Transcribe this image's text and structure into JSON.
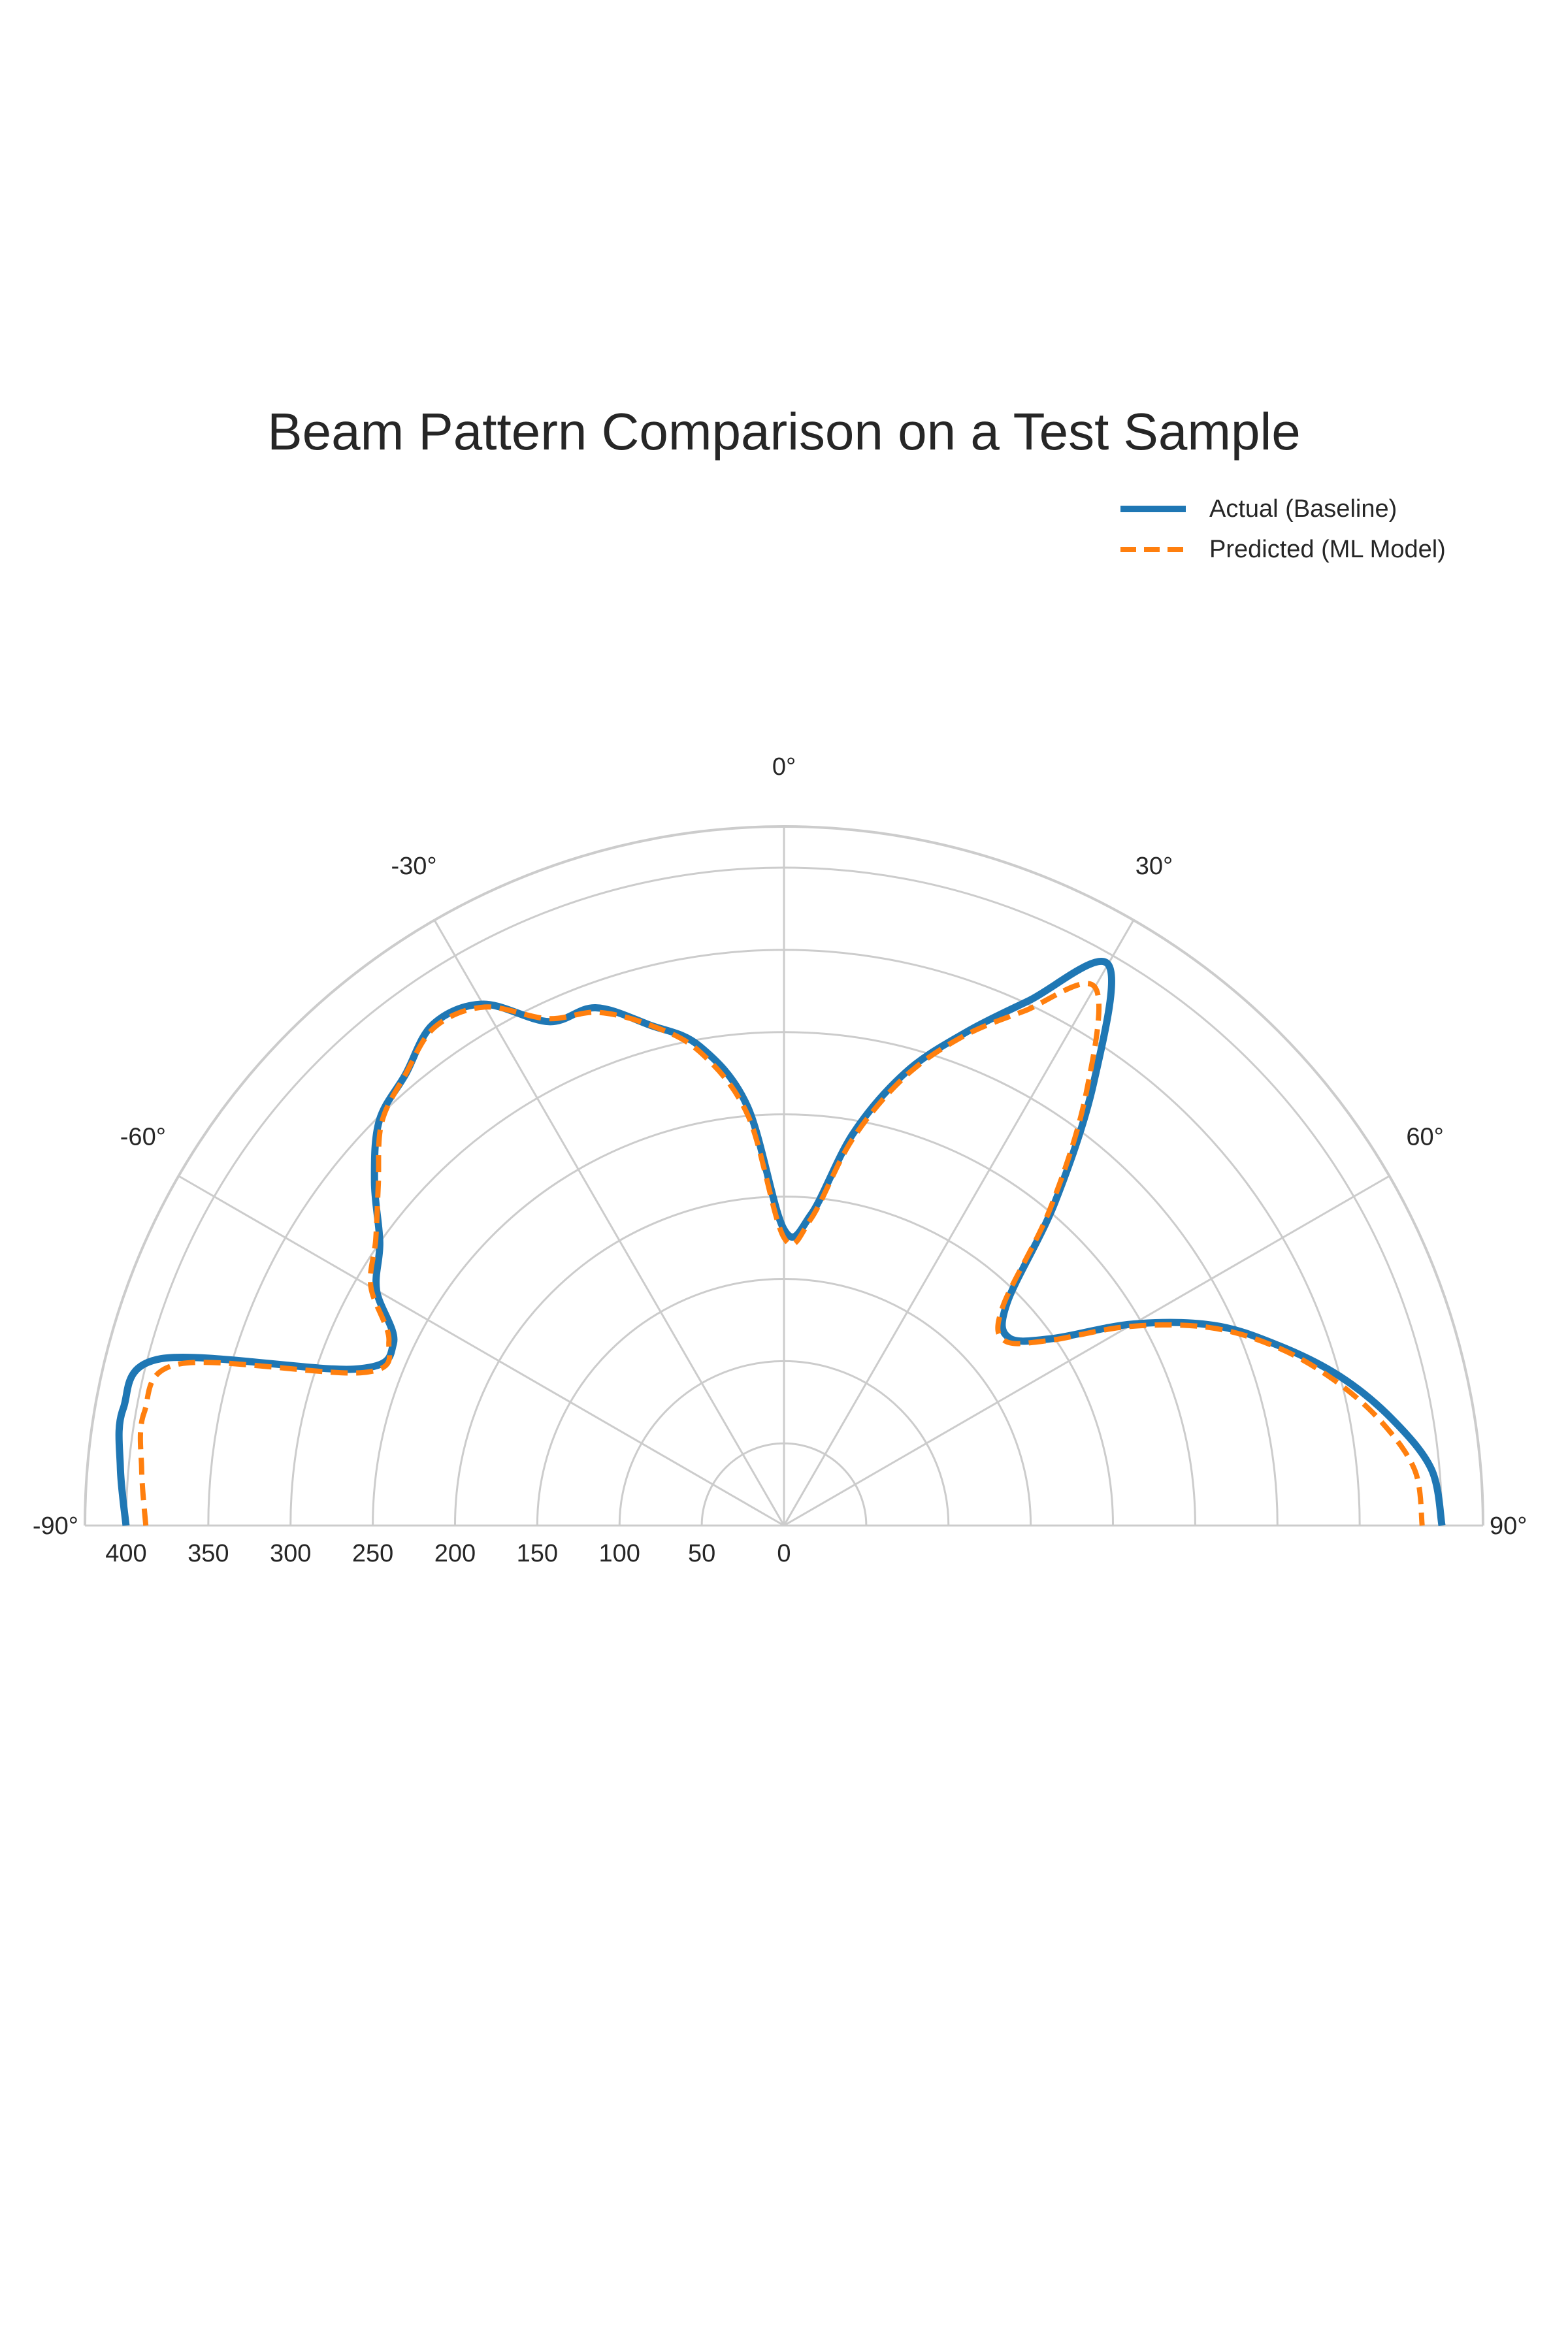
{
  "chart_data": {
    "type": "line",
    "polar": true,
    "title": "Beam Pattern Comparison on a Test Sample",
    "angle_range_deg": [
      -90,
      90
    ],
    "angle_ticks": [
      -90,
      -60,
      -30,
      0,
      30,
      60,
      90
    ],
    "angle_tick_labels": [
      "-90°",
      "-60°",
      "-30°",
      "0°",
      "30°",
      "60°",
      "90°"
    ],
    "radial_range": [
      0,
      425
    ],
    "radial_ticks": [
      0,
      50,
      100,
      150,
      200,
      250,
      300,
      350,
      400
    ],
    "radial_tick_labels": [
      "0",
      "50",
      "100",
      "150",
      "200",
      "250",
      "300",
      "350",
      "400"
    ],
    "grid": true,
    "legend_position": "top-right",
    "x": [
      -90,
      -85,
      -80,
      -75,
      -70,
      -65,
      -60,
      -55,
      -50,
      -45,
      -40,
      -35,
      -30,
      -25,
      -20,
      -15,
      -10,
      -5,
      0,
      5,
      10,
      15,
      20,
      25,
      30,
      35,
      40,
      45,
      50,
      55,
      60,
      65,
      70,
      75,
      80,
      85,
      90
    ],
    "series": [
      {
        "name": "Actual (Baseline)",
        "color": "#1f77b4",
        "style": "solid",
        "values": [
          400,
          405,
          408,
          392,
          278,
          262,
          286,
          300,
          325,
          348,
          358,
          372,
          366,
          338,
          335,
          315,
          296,
          256,
          180,
          190,
          242,
          285,
          318,
          352,
          394,
          328,
          256,
          192,
          178,
          198,
          245,
          288,
          320,
          350,
          375,
          395,
          400
        ]
      },
      {
        "name": "Predicted (ML Model)",
        "color": "#ff7f0e",
        "style": "dashed",
        "values": [
          388,
          392,
          395,
          380,
          272,
          265,
          290,
          303,
          322,
          346,
          358,
          370,
          364,
          340,
          332,
          315,
          292,
          250,
          175,
          187,
          238,
          282,
          316,
          345,
          378,
          320,
          252,
          188,
          175,
          196,
          242,
          285,
          318,
          345,
          368,
          385,
          388
        ]
      }
    ]
  },
  "legend": {
    "items": [
      {
        "label": "Actual (Baseline)"
      },
      {
        "label": "Predicted (ML Model)"
      }
    ]
  }
}
